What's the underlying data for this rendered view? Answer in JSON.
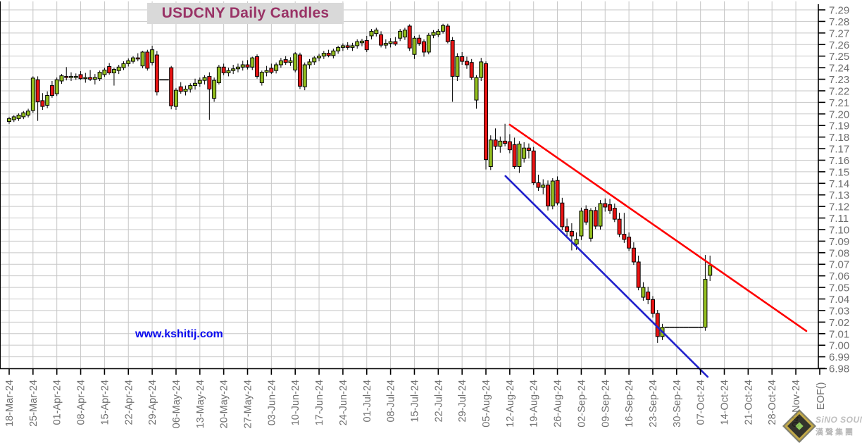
{
  "title": "USDCNY Daily Candles",
  "watermark": "www.kshitij.com",
  "eof_label": "EOF()",
  "logo": {
    "line1": "SiNO SOUND",
    "line2": "漢聲集團"
  },
  "colors": {
    "title_text": "#993366",
    "title_bg": "#d9d9d9",
    "watermark_blue": "#0808ee",
    "candle_up": "#95c11f",
    "candle_down": "#ec1414",
    "candle_outline": "#000000",
    "grid": "#c7c7c7",
    "axis": "#000000",
    "axis_label": "#6e6e6e",
    "trend_red": "#fe0000",
    "trend_blue": "#2121cc"
  },
  "chart_data": {
    "type": "candlestick",
    "title": "USDCNY Daily Candles",
    "ylabel": "",
    "xlabel": "",
    "ylim": [
      6.98,
      7.29
    ],
    "y_tick_step": 0.01,
    "grid": true,
    "y_tick_labels": [
      "7.29",
      "7.28",
      "7.27",
      "7.26",
      "7.25",
      "7.24",
      "7.23",
      "7.22",
      "7.21",
      "7.20",
      "7.19",
      "7.18",
      "7.17",
      "7.16",
      "7.15",
      "7.14",
      "7.13",
      "7.12",
      "7.11",
      "7.10",
      "7.09",
      "7.08",
      "7.07",
      "7.06",
      "7.05",
      "7.04",
      "7.03",
      "7.02",
      "7.01",
      "7.00",
      "6.99",
      "6.98"
    ],
    "x_labels": [
      "18-Mar-24",
      "25-Mar-24",
      "01-Apr-24",
      "08-Apr-24",
      "15-Apr-24",
      "22-Apr-24",
      "29-Apr-24",
      "06-May-24",
      "13-May-24",
      "20-May-24",
      "27-May-24",
      "03-Jun-24",
      "10-Jun-24",
      "17-Jun-24",
      "24-Jun-24",
      "01-Jul-24",
      "08-Jul-24",
      "15-Jul-24",
      "22-Jul-24",
      "29-Jul-24",
      "05-Aug-24",
      "12-Aug-24",
      "19-Aug-24",
      "26-Aug-24",
      "02-Sep-24",
      "09-Sep-24",
      "16-Sep-24",
      "23-Sep-24",
      "30-Sep-24",
      "07-Oct-24",
      "14-Oct-24",
      "21-Oct-24",
      "28-Oct-24",
      "04-Nov-24"
    ],
    "days_per_week_label": 5,
    "candle_format": "ohlc",
    "candles": [
      [
        7.1935,
        7.1975,
        7.1915,
        7.196
      ],
      [
        7.195,
        7.199,
        7.193,
        7.1975
      ],
      [
        7.196,
        7.2005,
        7.194,
        7.199
      ],
      [
        7.1975,
        7.2025,
        7.1955,
        7.201
      ],
      [
        7.199,
        7.2045,
        7.197,
        7.2025
      ],
      [
        7.203,
        7.2325,
        7.201,
        7.231
      ],
      [
        7.2295,
        7.2325,
        7.194,
        7.2105
      ],
      [
        7.2115,
        7.218,
        7.2035,
        7.2065
      ],
      [
        7.2075,
        7.2195,
        7.205,
        7.216
      ],
      [
        7.2245,
        7.2285,
        7.214,
        7.216
      ],
      [
        7.2175,
        7.2315,
        7.2155,
        7.2295
      ],
      [
        7.2285,
        7.2345,
        7.226,
        7.233
      ],
      [
        7.2325,
        7.2405,
        7.229,
        7.2315
      ],
      [
        7.2315,
        7.236,
        7.2285,
        7.2325
      ],
      [
        7.232,
        7.235,
        7.2295,
        7.2325
      ],
      [
        7.234,
        7.237,
        7.2295,
        7.2305
      ],
      [
        7.2305,
        7.2355,
        7.227,
        7.2315
      ],
      [
        7.2315,
        7.238,
        7.2285,
        7.23
      ],
      [
        7.23,
        7.2345,
        7.2255,
        7.2315
      ],
      [
        7.2305,
        7.2375,
        7.2285,
        7.236
      ],
      [
        7.234,
        7.24,
        7.232,
        7.238
      ],
      [
        7.241,
        7.244,
        7.234,
        7.2355
      ],
      [
        7.2355,
        7.24,
        7.2245,
        7.2385
      ],
      [
        7.2375,
        7.2425,
        7.2345,
        7.2405
      ],
      [
        7.24,
        7.2455,
        7.238,
        7.2435
      ],
      [
        7.2435,
        7.248,
        7.241,
        7.246
      ],
      [
        7.2455,
        7.25,
        7.2435,
        7.2485
      ],
      [
        7.2485,
        7.2525,
        7.2455,
        7.2475
      ],
      [
        7.2415,
        7.2545,
        7.2395,
        7.2535
      ],
      [
        7.2535,
        7.2555,
        7.2375,
        7.2395
      ],
      [
        7.2445,
        7.259,
        7.242,
        7.2555
      ],
      [
        7.251,
        7.2545,
        7.216,
        7.219
      ],
      [
        7.2295,
        7.2295,
        7.2295,
        7.2295
      ],
      [
        7.2295,
        7.2295,
        7.2295,
        7.2295
      ],
      [
        7.24,
        7.2415,
        7.204,
        7.207
      ],
      [
        7.2065,
        7.2225,
        7.2035,
        7.2205
      ],
      [
        7.2235,
        7.2275,
        7.2175,
        7.2195
      ],
      [
        7.2195,
        7.2245,
        7.216,
        7.2215
      ],
      [
        7.2215,
        7.2265,
        7.2185,
        7.2245
      ],
      [
        7.2245,
        7.2305,
        7.221,
        7.2265
      ],
      [
        7.2265,
        7.2315,
        7.2235,
        7.229
      ],
      [
        7.229,
        7.2335,
        7.2255,
        7.2315
      ],
      [
        7.2325,
        7.236,
        7.195,
        7.2215
      ],
      [
        7.2135,
        7.2315,
        7.2105,
        7.229
      ],
      [
        7.227,
        7.2425,
        7.2255,
        7.2405
      ],
      [
        7.2405,
        7.2435,
        7.2335,
        7.2355
      ],
      [
        7.2355,
        7.24,
        7.2325,
        7.2375
      ],
      [
        7.2375,
        7.2425,
        7.2345,
        7.239
      ],
      [
        7.239,
        7.2435,
        7.236,
        7.2405
      ],
      [
        7.2405,
        7.246,
        7.2375,
        7.2425
      ],
      [
        7.2425,
        7.2465,
        7.2385,
        7.2405
      ],
      [
        7.2405,
        7.2495,
        7.238,
        7.2485
      ],
      [
        7.2495,
        7.2515,
        7.2305,
        7.2325
      ],
      [
        7.227,
        7.2375,
        7.2245,
        7.236
      ],
      [
        7.236,
        7.2415,
        7.2325,
        7.2375
      ],
      [
        7.2395,
        7.2435,
        7.2345,
        7.236
      ],
      [
        7.2375,
        7.2445,
        7.235,
        7.2425
      ],
      [
        7.2425,
        7.2485,
        7.24,
        7.246
      ],
      [
        7.247,
        7.25,
        7.2425,
        7.2445
      ],
      [
        7.2445,
        7.249,
        7.2415,
        7.246
      ],
      [
        7.238,
        7.2535,
        7.236,
        7.252
      ],
      [
        7.251,
        7.253,
        7.2215,
        7.224
      ],
      [
        7.2235,
        7.2445,
        7.2205,
        7.2425
      ],
      [
        7.2425,
        7.2475,
        7.239,
        7.245
      ],
      [
        7.245,
        7.25,
        7.2425,
        7.2485
      ],
      [
        7.2485,
        7.252,
        7.2455,
        7.25
      ],
      [
        7.25,
        7.2545,
        7.2475,
        7.2525
      ],
      [
        7.2525,
        7.2555,
        7.249,
        7.2505
      ],
      [
        7.2505,
        7.2565,
        7.248,
        7.2545
      ],
      [
        7.2545,
        7.259,
        7.252,
        7.2575
      ],
      [
        7.2575,
        7.261,
        7.2545,
        7.259
      ],
      [
        7.259,
        7.262,
        7.2555,
        7.2575
      ],
      [
        7.2575,
        7.2615,
        7.2545,
        7.259
      ],
      [
        7.259,
        7.2645,
        7.2565,
        7.2625
      ],
      [
        7.2615,
        7.265,
        7.2585,
        7.263
      ],
      [
        7.2635,
        7.2675,
        7.2535,
        7.2555
      ],
      [
        7.2675,
        7.2735,
        7.2645,
        7.2715
      ],
      [
        7.2695,
        7.2745,
        7.267,
        7.2725
      ],
      [
        7.2685,
        7.2715,
        7.2575,
        7.2595
      ],
      [
        7.2595,
        7.2645,
        7.2565,
        7.261
      ],
      [
        7.261,
        7.2655,
        7.2575,
        7.2625
      ],
      [
        7.2625,
        7.2665,
        7.259,
        7.2605
      ],
      [
        7.2655,
        7.2735,
        7.263,
        7.2715
      ],
      [
        7.2665,
        7.2745,
        7.264,
        7.2725
      ],
      [
        7.276,
        7.2775,
        7.2545,
        7.257
      ],
      [
        7.2515,
        7.2675,
        7.2475,
        7.2655
      ],
      [
        7.2655,
        7.2685,
        7.259,
        7.261
      ],
      [
        7.2625,
        7.2645,
        7.2495,
        7.2535
      ],
      [
        7.2535,
        7.27,
        7.2515,
        7.268
      ],
      [
        7.268,
        7.2725,
        7.2655,
        7.2705
      ],
      [
        7.2685,
        7.2735,
        7.2665,
        7.2715
      ],
      [
        7.2715,
        7.278,
        7.2695,
        7.2765
      ],
      [
        7.276,
        7.278,
        7.261,
        7.2625
      ],
      [
        7.2635,
        7.2665,
        7.2105,
        7.2325
      ],
      [
        7.2325,
        7.2525,
        7.2285,
        7.2495
      ],
      [
        7.2495,
        7.2535,
        7.2425,
        7.2455
      ],
      [
        7.2455,
        7.2495,
        7.239,
        7.2425
      ],
      [
        7.2445,
        7.2475,
        7.2295,
        7.2315
      ],
      [
        7.212,
        7.2335,
        7.2045,
        7.2315
      ],
      [
        7.2315,
        7.2485,
        7.2285,
        7.245
      ],
      [
        7.2435,
        7.2455,
        7.152,
        7.1605
      ],
      [
        7.1545,
        7.1815,
        7.1515,
        7.1775
      ],
      [
        7.1775,
        7.1875,
        7.169,
        7.172
      ],
      [
        7.172,
        7.1805,
        7.1665,
        7.1765
      ],
      [
        7.1765,
        7.1915,
        7.172,
        7.1745
      ],
      [
        7.176,
        7.1825,
        7.166,
        7.169
      ],
      [
        7.1735,
        7.1795,
        7.1525,
        7.1545
      ],
      [
        7.1545,
        7.1765,
        7.149,
        7.174
      ],
      [
        7.1615,
        7.1755,
        7.158,
        7.1705
      ],
      [
        7.1705,
        7.1745,
        7.1615,
        7.1685
      ],
      [
        7.168,
        7.1715,
        7.1385,
        7.1405
      ],
      [
        7.1405,
        7.1475,
        7.1335,
        7.1365
      ],
      [
        7.1365,
        7.1435,
        7.1305,
        7.1385
      ],
      [
        7.1385,
        7.1425,
        7.1165,
        7.1205
      ],
      [
        7.1205,
        7.1445,
        7.1175,
        7.142
      ],
      [
        7.1425,
        7.146,
        7.121,
        7.123
      ],
      [
        7.123,
        7.1275,
        7.0995,
        7.1025
      ],
      [
        7.1025,
        7.1095,
        7.0925,
        7.0985
      ],
      [
        7.0985,
        7.1055,
        7.082,
        7.0945
      ],
      [
        7.0875,
        7.0975,
        7.0825,
        7.0915
      ],
      [
        7.0945,
        7.119,
        7.091,
        7.116
      ],
      [
        7.1175,
        7.121,
        7.104,
        7.1065
      ],
      [
        7.0925,
        7.1185,
        7.0895,
        7.1165
      ],
      [
        7.1165,
        7.1195,
        7.1005,
        7.103
      ],
      [
        7.103,
        7.1255,
        7.1,
        7.1225
      ],
      [
        7.1225,
        7.127,
        7.1155,
        7.1195
      ],
      [
        7.1215,
        7.1265,
        7.1135,
        7.1165
      ],
      [
        7.1185,
        7.1225,
        7.1065,
        7.109
      ],
      [
        7.109,
        7.1145,
        7.0935,
        7.096
      ],
      [
        7.096,
        7.1145,
        7.0885,
        7.0915
      ],
      [
        7.0935,
        7.0975,
        7.0815,
        7.084
      ],
      [
        7.084,
        7.089,
        7.0695,
        7.072
      ],
      [
        7.072,
        7.0775,
        7.0475,
        7.05
      ],
      [
        7.0415,
        7.0545,
        7.0385,
        7.05
      ],
      [
        7.046,
        7.0505,
        7.0355,
        7.0395
      ],
      [
        7.0395,
        7.0425,
        7.024,
        7.0275
      ],
      [
        7.0275,
        7.0305,
        7.002,
        7.0075
      ],
      [
        7.0075,
        7.0185,
        7.0045,
        7.0155
      ],
      [
        7.0155,
        7.0155,
        7.0155,
        7.0155
      ],
      [
        7.0155,
        7.0155,
        7.0155,
        7.0155
      ],
      [
        7.0155,
        7.0155,
        7.0155,
        7.0155
      ],
      [
        7.0155,
        7.0155,
        7.0155,
        7.0155
      ],
      [
        7.0155,
        7.0155,
        7.0155,
        7.0155
      ],
      [
        7.0155,
        7.0155,
        7.0155,
        7.0155
      ],
      [
        7.0155,
        7.0155,
        7.0155,
        7.0155
      ],
      [
        7.0155,
        7.0155,
        7.0155,
        7.0155
      ],
      [
        7.0155,
        7.078,
        7.0125,
        7.057
      ],
      [
        7.0605,
        7.0775,
        7.0555,
        7.069
      ]
    ],
    "trendlines": [
      {
        "name": "resistance-line",
        "color": "#fe0000",
        "x1_day": 105.0,
        "price1": 7.1907,
        "x2_day": 167.2,
        "price2": 7.0123
      },
      {
        "name": "support-line",
        "color": "#2121cc",
        "x1_day": 104.1,
        "price1": 7.1463,
        "x2_day": 146.5,
        "price2": 6.9727
      }
    ],
    "legend_position": "none"
  }
}
